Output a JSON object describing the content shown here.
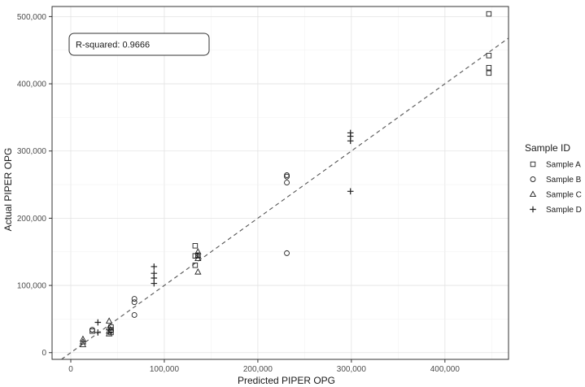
{
  "chart_data": {
    "type": "scatter",
    "xlabel": "Predicted PIPER OPG",
    "ylabel": "Actual PIPER OPG",
    "xlim": [
      -20000,
      468000
    ],
    "ylim": [
      -10000,
      515000
    ],
    "x_ticks": [
      0,
      100000,
      200000,
      300000,
      400000
    ],
    "x_tick_labels": [
      "0",
      "100,000",
      "200,000",
      "300,000",
      "400,000"
    ],
    "y_ticks": [
      0,
      100000,
      200000,
      300000,
      400000,
      500000
    ],
    "y_tick_labels": [
      "0",
      "100,000",
      "200,000",
      "300,000",
      "400,000",
      "500,000"
    ],
    "grid": true,
    "legend": {
      "title": "Sample ID",
      "position": "right"
    },
    "annotation": "R-squared: 0.9666",
    "reference_line": {
      "style": "dashed",
      "from": [
        -10000,
        -10000
      ],
      "to": [
        468000,
        468000
      ]
    },
    "series": [
      {
        "name": "Sample A",
        "marker": "square",
        "points": [
          [
            23000,
            32000
          ],
          [
            43000,
            30000
          ],
          [
            43000,
            34000
          ],
          [
            43000,
            38000
          ],
          [
            133000,
            159000
          ],
          [
            133000,
            144000
          ],
          [
            133000,
            130000
          ],
          [
            136000,
            145000
          ],
          [
            447000,
            504000
          ],
          [
            447000,
            442000
          ],
          [
            447000,
            424000
          ],
          [
            447000,
            416000
          ]
        ]
      },
      {
        "name": "Sample B",
        "marker": "circle",
        "points": [
          [
            23000,
            34000
          ],
          [
            43000,
            33000
          ],
          [
            68000,
            56000
          ],
          [
            68000,
            75000
          ],
          [
            68000,
            80000
          ],
          [
            231000,
            264000
          ],
          [
            231000,
            262000
          ],
          [
            231000,
            253000
          ],
          [
            231000,
            148000
          ]
        ]
      },
      {
        "name": "Sample C",
        "marker": "triangle",
        "points": [
          [
            13000,
            12000
          ],
          [
            13000,
            16000
          ],
          [
            13000,
            20000
          ],
          [
            41000,
            47000
          ],
          [
            41000,
            37000
          ],
          [
            41000,
            32000
          ],
          [
            41000,
            28000
          ],
          [
            136000,
            150000
          ],
          [
            136000,
            144000
          ],
          [
            136000,
            140000
          ],
          [
            136000,
            120000
          ]
        ]
      },
      {
        "name": "Sample D",
        "marker": "plus",
        "points": [
          [
            29000,
            45000
          ],
          [
            29000,
            30000
          ],
          [
            89000,
            128000
          ],
          [
            89000,
            118000
          ],
          [
            89000,
            111000
          ],
          [
            89000,
            103000
          ],
          [
            299000,
            327000
          ],
          [
            299000,
            322000
          ],
          [
            299000,
            315000
          ],
          [
            299000,
            240000
          ]
        ]
      }
    ]
  }
}
